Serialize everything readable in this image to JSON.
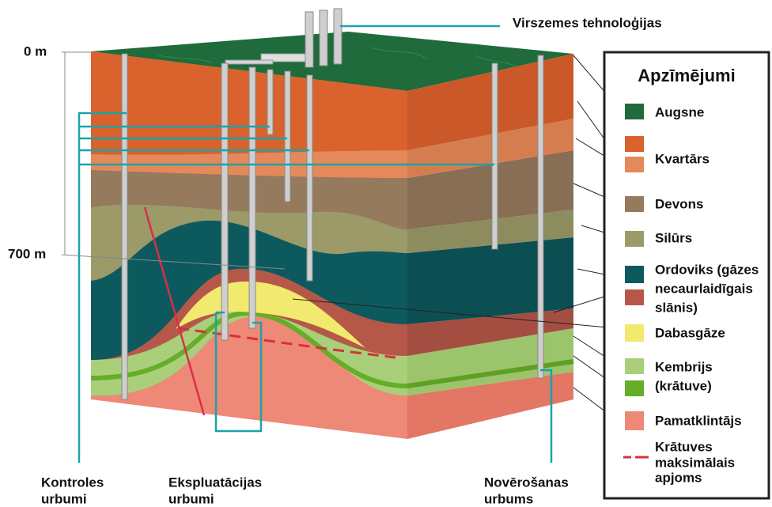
{
  "surface_label": "Virszemes tehnoloģijas",
  "depth_labels": [
    "0 m",
    "700 m"
  ],
  "well_groups": [
    {
      "lines": [
        "Kontroles",
        "urbumi"
      ]
    },
    {
      "lines": [
        "Ekspluatācijas",
        "urbumi"
      ]
    },
    {
      "lines": [
        "Novērošanas",
        "urbums"
      ]
    }
  ],
  "legend": {
    "title": "Apzīmējumi",
    "items": [
      {
        "lines": [
          "Augsne"
        ]
      },
      {
        "lines": [
          "Kvartārs"
        ]
      },
      {
        "lines": [
          "Devons"
        ]
      },
      {
        "lines": [
          "Silūrs"
        ]
      },
      {
        "lines": [
          "Ordoviks (gāzes",
          "necaurlaidīgais",
          "slānis)"
        ]
      },
      {
        "lines": [
          "Dabasgāze"
        ]
      },
      {
        "lines": [
          "Kembrijs",
          "(krātuve)"
        ]
      },
      {
        "lines": [
          "Pamatklintājs"
        ]
      },
      {
        "lines": [
          "Krātuves",
          "maksimālais",
          "apjoms"
        ]
      }
    ]
  }
}
